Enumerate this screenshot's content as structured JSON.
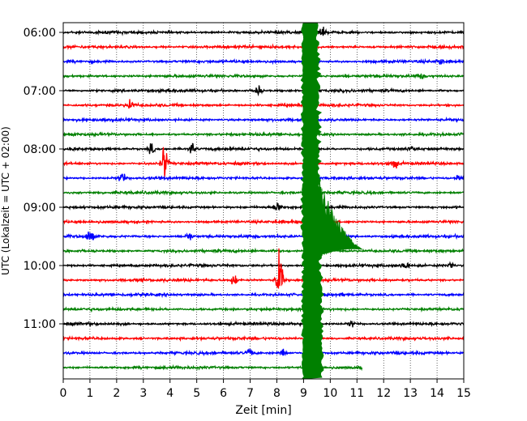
{
  "chart_data": {
    "type": "line",
    "title": "",
    "xlabel": "Zeit  [min]",
    "ylabel": "UTC (Lokalzeit = UTC + 02:00)",
    "xlim": [
      0,
      15
    ],
    "x_ticks": [
      0,
      1,
      2,
      3,
      4,
      5,
      6,
      7,
      8,
      9,
      10,
      11,
      12,
      13,
      14,
      15
    ],
    "y_ticks": [
      "06:00",
      "07:00",
      "08:00",
      "09:00",
      "10:00",
      "11:00"
    ],
    "grid": "vertical dotted",
    "trace_interval_minutes": 15,
    "first_trace": "06:00",
    "trace_count": 24,
    "colors": [
      "#000000",
      "#ff0000",
      "#0000ff",
      "#008000"
    ],
    "events": [
      {
        "trace": 0,
        "minute": 9.7,
        "amplitude": 1.3
      },
      {
        "trace": 2,
        "minute": 14.1,
        "amplitude": 1.0
      },
      {
        "trace": 3,
        "minute": 13.4,
        "amplitude": 0.7
      },
      {
        "trace": 4,
        "minute": 7.3,
        "amplitude": 1.6
      },
      {
        "trace": 5,
        "minute": 2.5,
        "amplitude": 1.5
      },
      {
        "trace": 8,
        "minute": 3.3,
        "amplitude": 1.5
      },
      {
        "trace": 8,
        "minute": 4.8,
        "amplitude": 1.8
      },
      {
        "trace": 8,
        "minute": 13.0,
        "amplitude": 1.0
      },
      {
        "trace": 9,
        "minute": 3.8,
        "amplitude": 6.0
      },
      {
        "trace": 9,
        "minute": 12.4,
        "amplitude": 1.5
      },
      {
        "trace": 10,
        "minute": 2.2,
        "amplitude": 1.7
      },
      {
        "trace": 10,
        "minute": 14.8,
        "amplitude": 1.0
      },
      {
        "trace": 12,
        "minute": 8.0,
        "amplitude": 1.5
      },
      {
        "trace": 14,
        "minute": 1.0,
        "amplitude": 2.2
      },
      {
        "trace": 14,
        "minute": 4.7,
        "amplitude": 1.2
      },
      {
        "trace": 16,
        "minute": 12.8,
        "amplitude": 1.8
      },
      {
        "trace": 16,
        "minute": 14.5,
        "amplitude": 1.2
      },
      {
        "trace": 17,
        "minute": 6.4,
        "amplitude": 1.8
      },
      {
        "trace": 17,
        "minute": 8.1,
        "amplitude": 8.0
      },
      {
        "trace": 20,
        "minute": 10.8,
        "amplitude": 1.0
      },
      {
        "trace": 22,
        "minute": 7.0,
        "amplitude": 1.2
      },
      {
        "trace": 22,
        "minute": 8.2,
        "amplitude": 1.5
      }
    ],
    "major_event": {
      "trace": 23,
      "start_minute": 9.0,
      "end_minute": 9.45,
      "tail_minute": 11.2
    }
  }
}
